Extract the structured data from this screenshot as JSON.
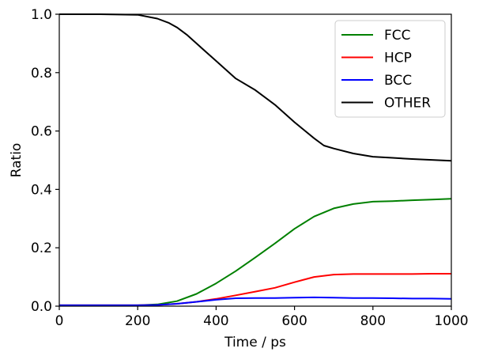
{
  "chart_data": {
    "type": "line",
    "title": "",
    "xlabel": "Time / ps",
    "ylabel": "Ratio",
    "xlim": [
      0,
      1000
    ],
    "ylim": [
      0,
      1.0
    ],
    "xticks": [
      0,
      200,
      400,
      600,
      800,
      1000
    ],
    "yticks": [
      0.0,
      0.2,
      0.4,
      0.6,
      0.8,
      1.0
    ],
    "xtick_labels": [
      "0",
      "200",
      "400",
      "600",
      "800",
      "1000"
    ],
    "ytick_labels": [
      "0.0",
      "0.2",
      "0.4",
      "0.6",
      "0.8",
      "1.0"
    ],
    "grid": false,
    "legend_position": "top-right",
    "series": [
      {
        "name": "FCC",
        "color": "#008000",
        "x": [
          0,
          200,
          250,
          300,
          350,
          400,
          450,
          500,
          550,
          600,
          650,
          700,
          750,
          800,
          850,
          900,
          950,
          1000
        ],
        "y": [
          0.003,
          0.003,
          0.006,
          0.017,
          0.042,
          0.078,
          0.12,
          0.167,
          0.215,
          0.265,
          0.307,
          0.335,
          0.35,
          0.358,
          0.36,
          0.363,
          0.365,
          0.368
        ]
      },
      {
        "name": "HCP",
        "color": "#ff0000",
        "x": [
          0,
          200,
          250,
          300,
          350,
          400,
          450,
          500,
          550,
          600,
          650,
          700,
          750,
          800,
          850,
          900,
          950,
          1000
        ],
        "y": [
          0.003,
          0.003,
          0.004,
          0.008,
          0.015,
          0.025,
          0.037,
          0.05,
          0.063,
          0.082,
          0.1,
          0.108,
          0.11,
          0.11,
          0.11,
          0.11,
          0.111,
          0.111
        ]
      },
      {
        "name": "BCC",
        "color": "#0000ff",
        "x": [
          0,
          200,
          250,
          300,
          350,
          400,
          450,
          500,
          550,
          600,
          650,
          700,
          750,
          800,
          850,
          900,
          950,
          1000
        ],
        "y": [
          0.003,
          0.003,
          0.004,
          0.008,
          0.015,
          0.022,
          0.027,
          0.028,
          0.028,
          0.029,
          0.03,
          0.029,
          0.028,
          0.028,
          0.027,
          0.026,
          0.026,
          0.025
        ]
      },
      {
        "name": "OTHER",
        "color": "#000000",
        "x": [
          0,
          100,
          200,
          250,
          280,
          300,
          325,
          350,
          375,
          400,
          425,
          450,
          500,
          550,
          600,
          650,
          675,
          700,
          750,
          800,
          850,
          900,
          950,
          1000
        ],
        "y": [
          1.0,
          1.0,
          0.998,
          0.985,
          0.97,
          0.955,
          0.93,
          0.9,
          0.87,
          0.84,
          0.81,
          0.78,
          0.74,
          0.69,
          0.63,
          0.575,
          0.55,
          0.54,
          0.523,
          0.512,
          0.508,
          0.504,
          0.501,
          0.498
        ]
      }
    ]
  }
}
